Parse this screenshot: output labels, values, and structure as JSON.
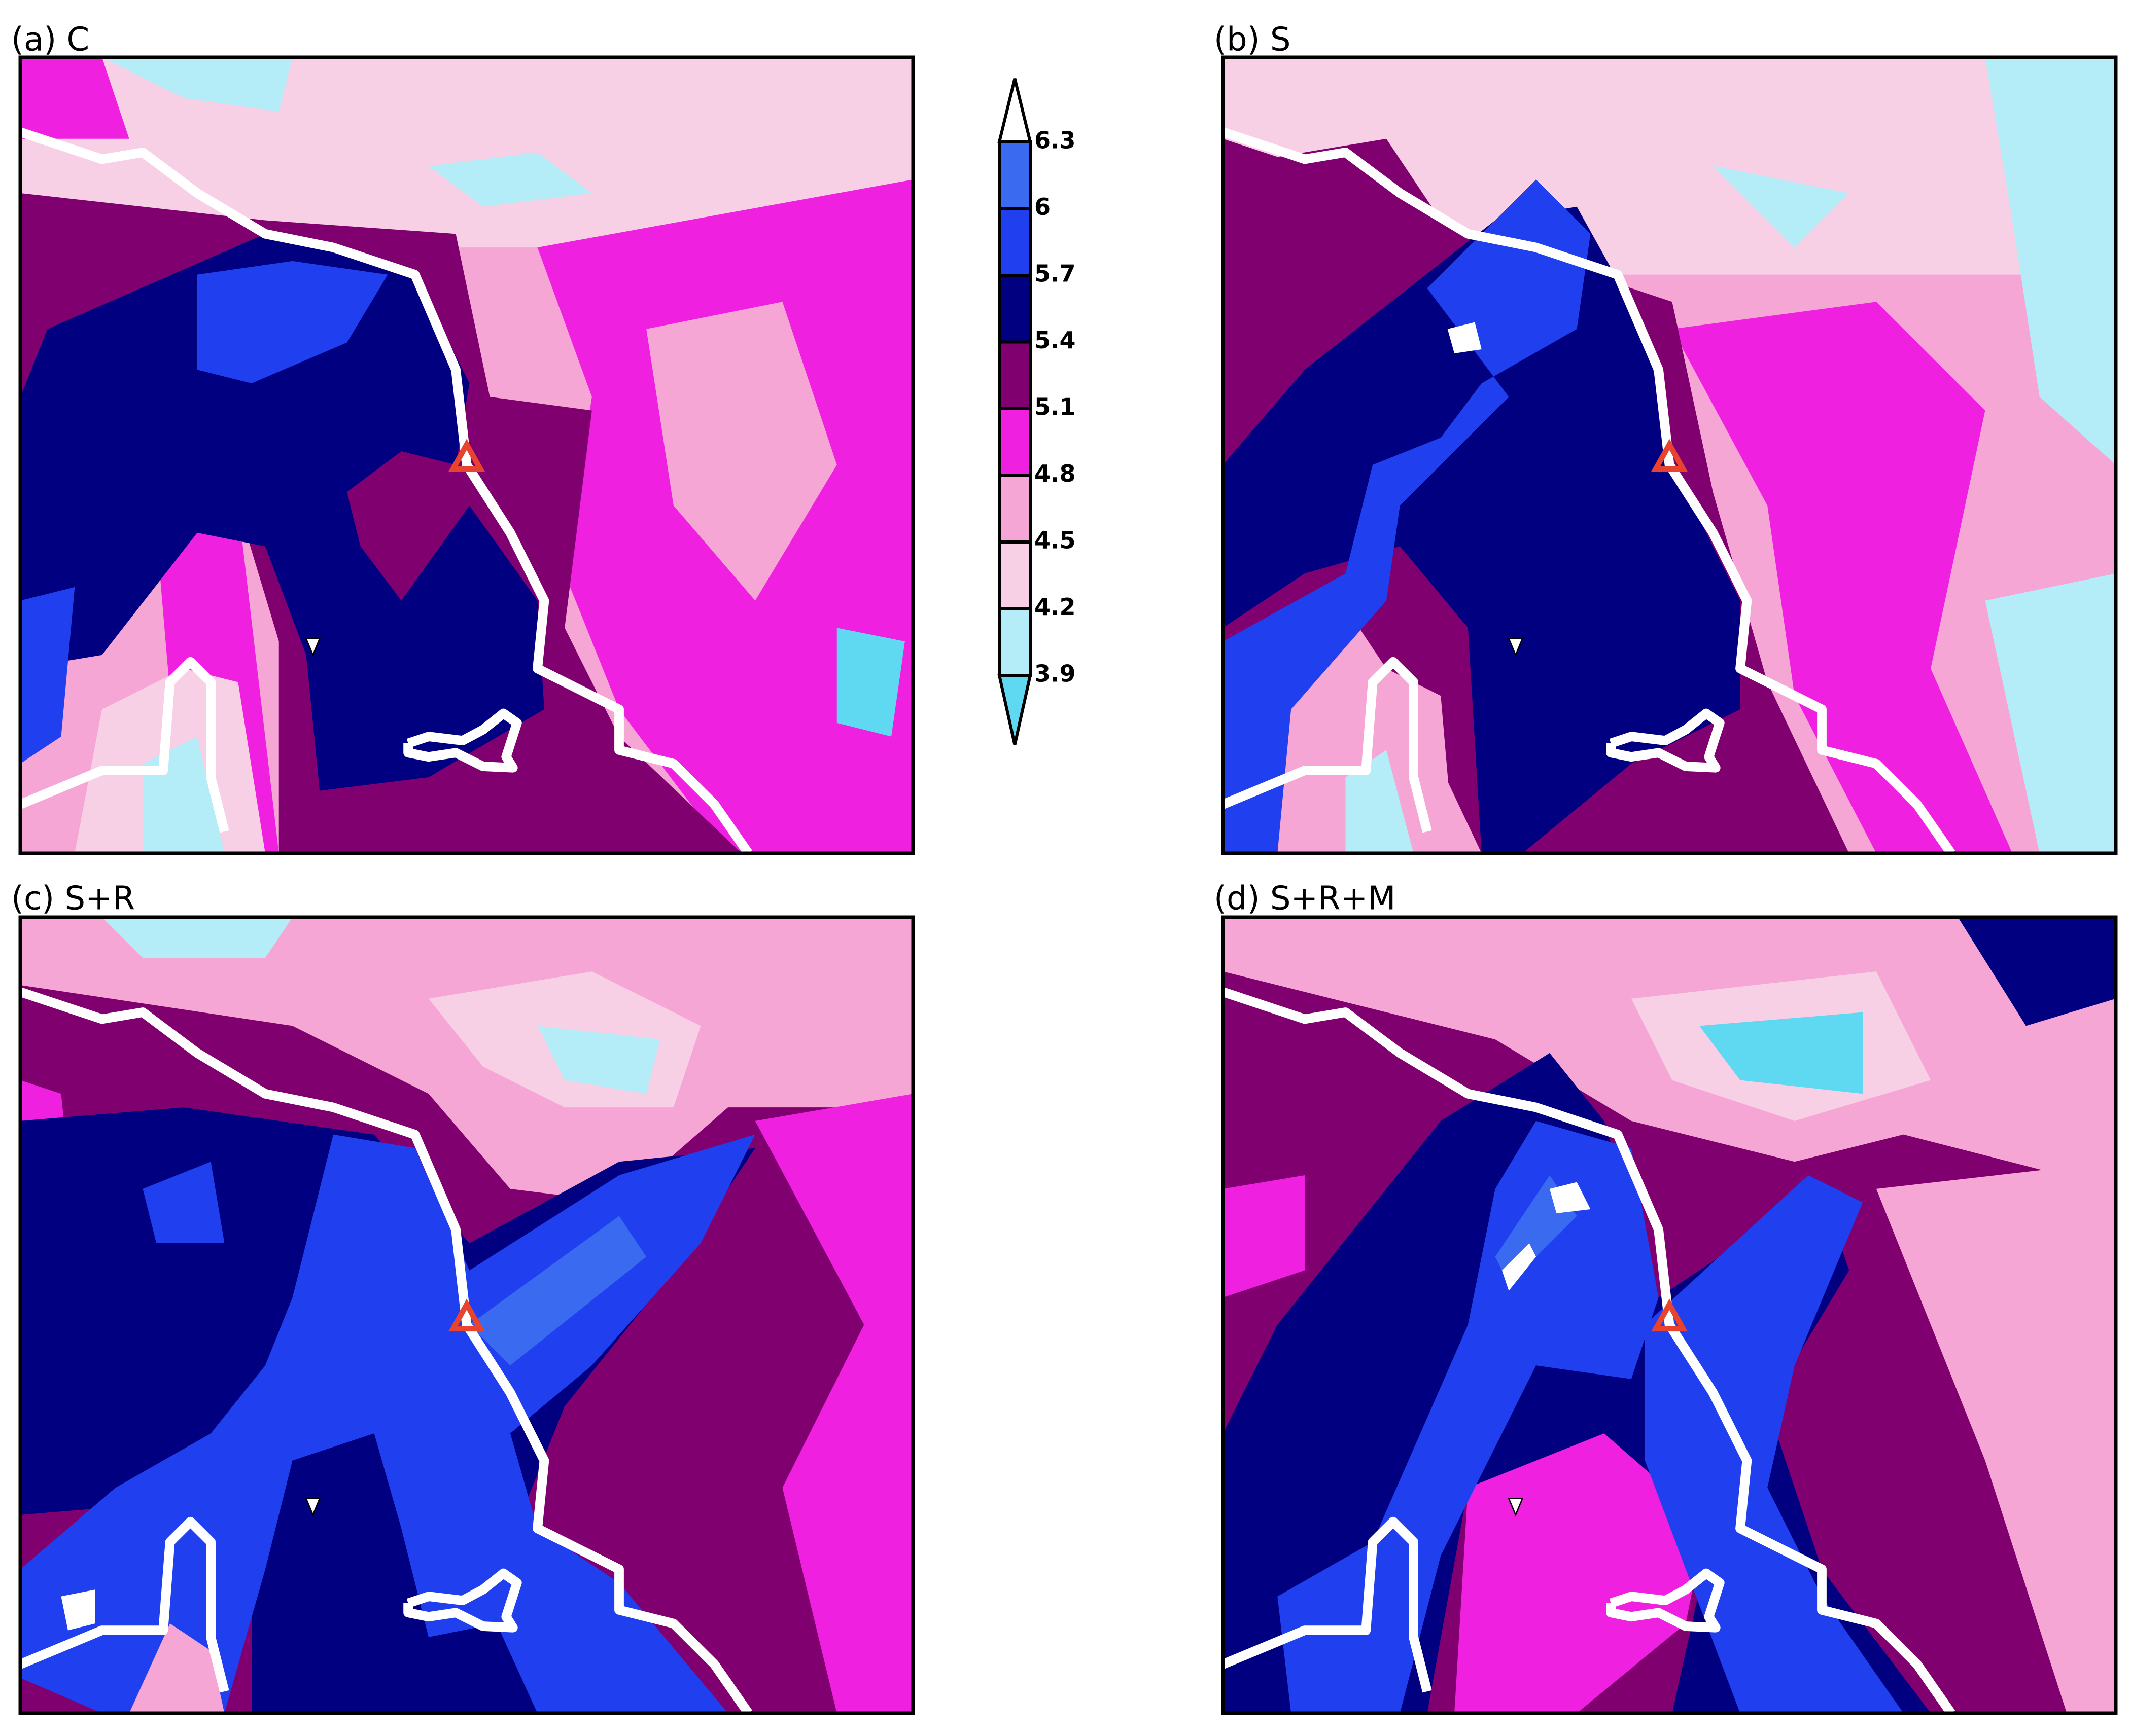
{
  "panels": [
    {
      "label": "(a) C"
    },
    {
      "label": "(b) S"
    },
    {
      "label": "(c) S+R"
    },
    {
      "label": "(d) S+R+M"
    }
  ],
  "colorbar": {
    "ticks": [
      3.9,
      4.2,
      4.5,
      4.8,
      5.1,
      5.4,
      5.7,
      6,
      6.3
    ],
    "colors": [
      "#5fd8f2",
      "#b4ecf8",
      "#f8d0e6",
      "#f6a6d4",
      "#f020e0",
      "#800070",
      "#000080",
      "#2040f0",
      "#3a6af0",
      "#ffffff"
    ]
  }
}
